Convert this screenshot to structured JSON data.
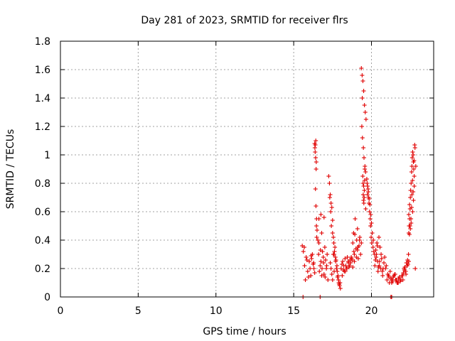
{
  "chart_data": {
    "type": "scatter",
    "title": "Day 281 of 2023, SRMTID for receiver flrs",
    "xlabel": "GPS time / hours",
    "ylabel": "SRMTID / TECUs",
    "xlim": [
      0,
      24
    ],
    "ylim": [
      0,
      1.8
    ],
    "x_ticks": [
      0,
      5,
      10,
      15,
      20
    ],
    "y_ticks": [
      0,
      0.2,
      0.4,
      0.6,
      0.8,
      1,
      1.2,
      1.4,
      1.6,
      1.8
    ],
    "x_tick_labels": [
      "0",
      "5",
      "10",
      "15",
      "20"
    ],
    "y_tick_labels": [
      "0",
      "0.2",
      "0.4",
      "0.6",
      "0.8",
      "1",
      "1.2",
      "1.4",
      "1.6",
      "1.8"
    ],
    "grid": true,
    "marker": "+",
    "marker_color": "#e00000",
    "series": [
      {
        "name": "flrs",
        "x": [
          15.55,
          15.7,
          15.8,
          15.9,
          16.0,
          16.1,
          16.2,
          16.3,
          15.62,
          15.75,
          15.85,
          16.05,
          16.15,
          16.25,
          16.35,
          15.68,
          15.95,
          16.12,
          16.28,
          16.35,
          16.38,
          16.42,
          16.45,
          16.4,
          16.43,
          16.47,
          16.5,
          16.36,
          16.44,
          16.41,
          16.39,
          16.46,
          16.48,
          16.55,
          16.6,
          16.7,
          16.8,
          16.9,
          17.0,
          17.1,
          17.2,
          16.65,
          16.75,
          16.85,
          16.95,
          17.05,
          17.15,
          16.62,
          16.72,
          16.82,
          16.92,
          17.02,
          17.12,
          16.62,
          16.75,
          16.8,
          16.95,
          17.25,
          17.3,
          17.35,
          17.4,
          17.45,
          17.5,
          17.32,
          17.38,
          17.42,
          17.5,
          17.6,
          17.7,
          17.8,
          17.9,
          18.0,
          17.55,
          17.65,
          17.75,
          17.85,
          17.95,
          17.58,
          17.68,
          17.78,
          17.88,
          17.98,
          17.62,
          17.72,
          17.82,
          17.92,
          17.4,
          17.45,
          17.35,
          17.5,
          17.55,
          17.6,
          18.05,
          18.15,
          18.25,
          18.35,
          18.45,
          18.55,
          18.65,
          18.75,
          18.1,
          18.2,
          18.3,
          18.4,
          18.5,
          18.6,
          18.7,
          18.8,
          18.12,
          18.32,
          18.52,
          18.72,
          18.22,
          18.42,
          18.62,
          18.8,
          18.85,
          18.9,
          18.95,
          19.0,
          19.05,
          19.1,
          19.15,
          19.2,
          19.25,
          18.87,
          18.93,
          19.03,
          19.13,
          19.23,
          19.3,
          19.35,
          18.9,
          19.1,
          19.35,
          19.4,
          19.45,
          19.5,
          19.55,
          19.6,
          19.65,
          19.38,
          19.42,
          19.48,
          19.52,
          19.58,
          19.62,
          19.44,
          19.46,
          19.5,
          19.54,
          19.56,
          19.47,
          19.53,
          19.49,
          19.51,
          19.57,
          19.41,
          19.63,
          19.7,
          19.75,
          19.8,
          19.85,
          19.9,
          19.95,
          20.0,
          20.05,
          19.72,
          19.78,
          19.82,
          19.88,
          19.92,
          19.98,
          20.02,
          19.74,
          19.84,
          19.94,
          20.1,
          20.2,
          20.3,
          20.4,
          20.5,
          20.6,
          20.7,
          20.8,
          20.15,
          20.25,
          20.35,
          20.45,
          20.55,
          20.65,
          20.75,
          20.12,
          20.22,
          20.32,
          20.42,
          20.52,
          20.62,
          20.72,
          20.48,
          20.28,
          20.38,
          20.85,
          20.9,
          21.0,
          21.1,
          21.2,
          21.3,
          21.4,
          21.5,
          21.6,
          21.7,
          21.8,
          21.9,
          20.95,
          21.05,
          21.15,
          21.25,
          21.35,
          21.45,
          21.55,
          21.65,
          21.75,
          21.85,
          21.95,
          21.12,
          21.32,
          21.52,
          21.72,
          22.0,
          22.1,
          22.2,
          22.3,
          22.4,
          22.05,
          22.15,
          22.25,
          22.35,
          22.02,
          22.12,
          22.22,
          22.32,
          22.38,
          22.4,
          22.42,
          22.45,
          22.48,
          22.5,
          22.52,
          22.55,
          22.58,
          22.6,
          22.62,
          22.65,
          22.68,
          22.7,
          22.72,
          22.75,
          22.4,
          22.45,
          22.5,
          22.55,
          22.6,
          22.65,
          22.7,
          22.75,
          22.44,
          22.54,
          22.64,
          22.74,
          22.48,
          22.58,
          22.68,
          22.78,
          22.8,
          22.82,
          22.85,
          15.6,
          16.7,
          21.3,
          21.25
        ],
        "y": [
          0.36,
          0.22,
          0.28,
          0.18,
          0.25,
          0.15,
          0.3,
          0.2,
          0.32,
          0.12,
          0.26,
          0.2,
          0.27,
          0.23,
          0.17,
          0.35,
          0.14,
          0.29,
          0.24,
          1.08,
          1.02,
          1.1,
          0.95,
          0.76,
          0.64,
          0.55,
          0.47,
          1.05,
          0.9,
          0.98,
          1.07,
          0.5,
          0.42,
          0.4,
          0.3,
          0.22,
          0.15,
          0.28,
          0.35,
          0.2,
          0.12,
          0.18,
          0.25,
          0.32,
          0.16,
          0.26,
          0.3,
          0.38,
          0.33,
          0.2,
          0.24,
          0.14,
          0.22,
          0.55,
          0.58,
          0.45,
          0.56,
          0.85,
          0.8,
          0.72,
          0.66,
          0.63,
          0.54,
          0.7,
          0.6,
          0.5,
          0.45,
          0.3,
          0.25,
          0.18,
          0.1,
          0.06,
          0.42,
          0.35,
          0.2,
          0.15,
          0.08,
          0.38,
          0.28,
          0.22,
          0.12,
          0.1,
          0.32,
          0.26,
          0.14,
          0.09,
          0.2,
          0.16,
          0.24,
          0.12,
          0.3,
          0.18,
          0.2,
          0.25,
          0.18,
          0.22,
          0.28,
          0.21,
          0.24,
          0.26,
          0.23,
          0.19,
          0.27,
          0.2,
          0.25,
          0.22,
          0.28,
          0.21,
          0.15,
          0.18,
          0.24,
          0.27,
          0.22,
          0.2,
          0.26,
          0.38,
          0.45,
          0.3,
          0.55,
          0.34,
          0.4,
          0.48,
          0.27,
          0.36,
          0.42,
          0.32,
          0.44,
          0.28,
          0.35,
          0.4,
          0.3,
          0.38,
          0.25,
          0.33,
          1.61,
          1.56,
          1.52,
          1.45,
          1.35,
          1.3,
          1.25,
          1.2,
          1.12,
          1.05,
          0.98,
          0.92,
          0.88,
          0.85,
          0.8,
          0.78,
          0.75,
          0.82,
          0.72,
          0.7,
          0.68,
          0.66,
          0.9,
          1.4,
          0.62,
          0.83,
          0.78,
          0.74,
          0.69,
          0.65,
          0.58,
          0.52,
          0.45,
          0.8,
          0.76,
          0.7,
          0.6,
          0.55,
          0.42,
          0.38,
          0.72,
          0.66,
          0.5,
          0.35,
          0.3,
          0.28,
          0.25,
          0.22,
          0.2,
          0.18,
          0.24,
          0.32,
          0.26,
          0.38,
          0.21,
          0.35,
          0.27,
          0.2,
          0.4,
          0.22,
          0.3,
          0.18,
          0.25,
          0.3,
          0.15,
          0.42,
          0.33,
          0.36,
          0.28,
          0.2,
          0.12,
          0.15,
          0.18,
          0.1,
          0.14,
          0.16,
          0.12,
          0.1,
          0.14,
          0.12,
          0.22,
          0.16,
          0.1,
          0.13,
          0.11,
          0.15,
          0.12,
          0.1,
          0.13,
          0.11,
          0.15,
          0.14,
          0.12,
          0.16,
          0.1,
          0.15,
          0.2,
          0.18,
          0.22,
          0.25,
          0.17,
          0.21,
          0.24,
          0.23,
          0.12,
          0.19,
          0.16,
          0.26,
          0.3,
          0.45,
          0.5,
          0.55,
          0.62,
          0.7,
          0.75,
          0.8,
          0.88,
          0.92,
          0.98,
          1.02,
          1.0,
          0.95,
          0.9,
          0.85,
          0.58,
          0.65,
          0.48,
          0.52,
          0.72,
          0.6,
          0.68,
          0.78,
          0.44,
          0.55,
          0.82,
          0.96,
          0.5,
          0.63,
          0.74,
          1.07,
          1.05,
          0.2,
          0.92,
          0.0,
          0.0,
          0.0,
          0.0
        ]
      }
    ]
  }
}
